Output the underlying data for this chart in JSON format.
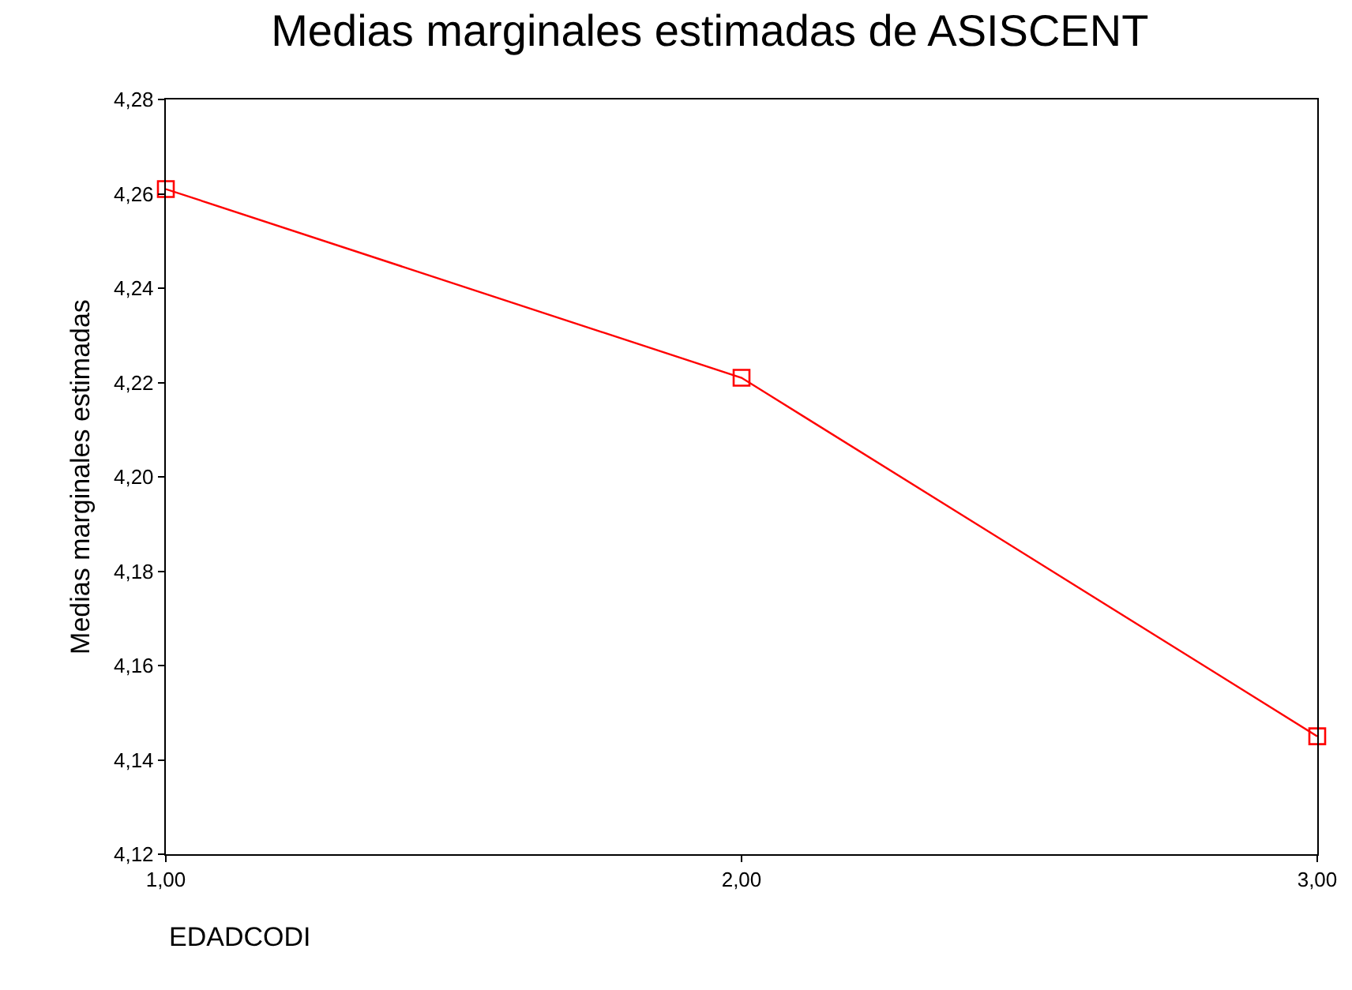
{
  "chart_data": {
    "type": "line",
    "title": "Medias marginales estimadas de ASISCENT",
    "xlabel": "EDADCODI",
    "ylabel": "Medias marginales estimadas",
    "x": [
      1,
      2,
      3
    ],
    "series": [
      {
        "color": "#ff0000",
        "values": [
          4.261,
          4.221,
          4.145
        ]
      }
    ],
    "xlim": [
      1,
      3
    ],
    "xticks": [
      {
        "value": 1,
        "label": "1,00"
      },
      {
        "value": 2,
        "label": "2,00"
      },
      {
        "value": 3,
        "label": "3,00"
      }
    ],
    "ylim": [
      4.12,
      4.28
    ],
    "yticks": [
      {
        "value": 4.12,
        "label": "4,12"
      },
      {
        "value": 4.14,
        "label": "4,14"
      },
      {
        "value": 4.16,
        "label": "4,16"
      },
      {
        "value": 4.18,
        "label": "4,18"
      },
      {
        "value": 4.2,
        "label": "4,20"
      },
      {
        "value": 4.22,
        "label": "4,22"
      },
      {
        "value": 4.24,
        "label": "4,24"
      },
      {
        "value": 4.26,
        "label": "4,26"
      },
      {
        "value": 4.28,
        "label": "4,28"
      }
    ],
    "grid": false,
    "marker": "square",
    "line_style": "solid"
  }
}
